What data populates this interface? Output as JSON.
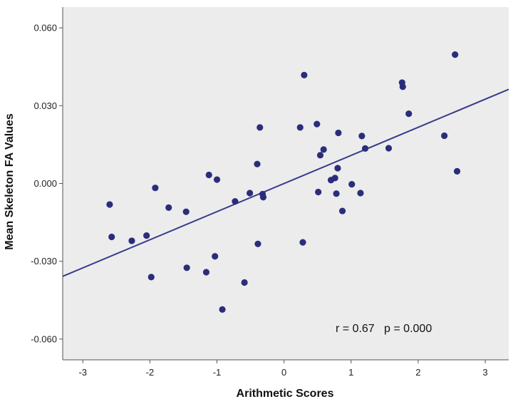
{
  "chart_data": {
    "type": "scatter",
    "title": "",
    "xlabel": "Arithmetic Scores",
    "ylabel": "Mean Skeleton FA Values",
    "xlim": [
      -3.3,
      3.35
    ],
    "ylim": [
      -0.068,
      0.068
    ],
    "x_ticks": [
      -3,
      -2,
      -1,
      0,
      1,
      2,
      3
    ],
    "x_tick_labels": [
      "-3",
      "-2",
      "-1",
      "0",
      "1",
      "2",
      "3"
    ],
    "y_ticks": [
      -0.06,
      -0.03,
      0.0,
      0.03,
      0.06
    ],
    "y_tick_labels": [
      "-0.060",
      "-0.030",
      "0.000",
      "0.030",
      "0.060"
    ],
    "grid": false,
    "annotation": "r = 0.67   p = 0.000",
    "fit_line": {
      "x": [
        -3.3,
        3.35
      ],
      "y": [
        -0.0358,
        0.0363
      ]
    },
    "points": [
      {
        "x": -2.6,
        "y": -0.0081
      },
      {
        "x": -2.57,
        "y": -0.0206
      },
      {
        "x": -2.27,
        "y": -0.0221
      },
      {
        "x": -2.05,
        "y": -0.0201
      },
      {
        "x": -1.98,
        "y": -0.0361
      },
      {
        "x": -1.92,
        "y": -0.0017
      },
      {
        "x": -1.72,
        "y": -0.0093
      },
      {
        "x": -1.46,
        "y": -0.0109
      },
      {
        "x": -1.45,
        "y": -0.0325
      },
      {
        "x": -1.16,
        "y": -0.0342
      },
      {
        "x": -1.12,
        "y": 0.0033
      },
      {
        "x": -1.03,
        "y": -0.0281
      },
      {
        "x": -1.0,
        "y": 0.0015
      },
      {
        "x": -0.92,
        "y": -0.0486
      },
      {
        "x": -0.73,
        "y": -0.0069
      },
      {
        "x": -0.59,
        "y": -0.0382
      },
      {
        "x": -0.51,
        "y": -0.0037
      },
      {
        "x": -0.4,
        "y": 0.0075
      },
      {
        "x": -0.39,
        "y": -0.0233
      },
      {
        "x": -0.36,
        "y": 0.0216
      },
      {
        "x": -0.32,
        "y": -0.0041
      },
      {
        "x": -0.31,
        "y": -0.0053
      },
      {
        "x": 0.24,
        "y": 0.0216
      },
      {
        "x": 0.28,
        "y": -0.0227
      },
      {
        "x": 0.3,
        "y": 0.0418
      },
      {
        "x": 0.49,
        "y": 0.0229
      },
      {
        "x": 0.51,
        "y": -0.0033
      },
      {
        "x": 0.54,
        "y": 0.0109
      },
      {
        "x": 0.59,
        "y": 0.0131
      },
      {
        "x": 0.7,
        "y": 0.0013
      },
      {
        "x": 0.76,
        "y": 0.0021
      },
      {
        "x": 0.78,
        "y": -0.0039
      },
      {
        "x": 0.8,
        "y": 0.0059
      },
      {
        "x": 0.81,
        "y": 0.0195
      },
      {
        "x": 0.87,
        "y": -0.0106
      },
      {
        "x": 1.01,
        "y": -0.0003
      },
      {
        "x": 1.14,
        "y": -0.0037
      },
      {
        "x": 1.16,
        "y": 0.0183
      },
      {
        "x": 1.21,
        "y": 0.0135
      },
      {
        "x": 1.56,
        "y": 0.0136
      },
      {
        "x": 1.76,
        "y": 0.0389
      },
      {
        "x": 1.77,
        "y": 0.0373
      },
      {
        "x": 1.86,
        "y": 0.0269
      },
      {
        "x": 2.39,
        "y": 0.0184
      },
      {
        "x": 2.55,
        "y": 0.0497
      },
      {
        "x": 2.58,
        "y": 0.0047
      }
    ],
    "colors": {
      "plot_background": "#ececec",
      "marker": "#2b2d7b",
      "fit_line": "#363a8c",
      "axis": "#555555"
    }
  }
}
